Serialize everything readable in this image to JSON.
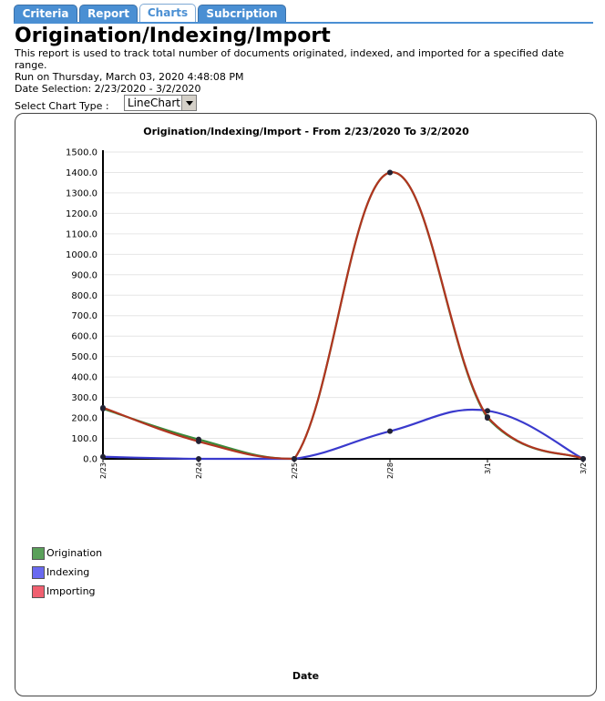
{
  "tabs": [
    {
      "label": "Criteria",
      "active": false
    },
    {
      "label": "Report",
      "active": false
    },
    {
      "label": "Charts",
      "active": true
    },
    {
      "label": "Subcription",
      "active": false
    }
  ],
  "header": {
    "title": "Origination/Indexing/Import",
    "description": "This report is used to track total number of documents originated, indexed, and imported for a specified date range.",
    "run_on": "Run on Thursday, March 03, 2020 4:48:08 PM",
    "date_selection": "Date Selection: 2/23/2020 - 3/2/2020"
  },
  "chart_type": {
    "label": "Select Chart Type :",
    "selected": "LineChart"
  },
  "colors": {
    "tab_bg": "#4a8fd3",
    "origination": "#3a8a3a",
    "indexing": "#3a3acd",
    "importing": "#b03520"
  },
  "chart_data": {
    "type": "line",
    "title": "Origination/Indexing/Import - From 2/23/2020 To 3/2/2020",
    "xlabel": "Date",
    "ylabel": "",
    "categories": [
      "2/23",
      "2/24",
      "2/25",
      "2/28",
      "3/1",
      "3/2"
    ],
    "ylim": [
      0,
      1500
    ],
    "yticks": [
      0,
      100,
      200,
      300,
      400,
      500,
      600,
      700,
      800,
      900,
      1000,
      1100,
      1200,
      1300,
      1400,
      1500
    ],
    "grid": true,
    "legend_position": "bottom-left",
    "series": [
      {
        "name": "Origination",
        "color": "#5aa05a",
        "line_color": "#3a8a3a",
        "values": [
          245,
          95,
          0,
          1400,
          200,
          0
        ]
      },
      {
        "name": "Indexing",
        "color": "#6a6af0",
        "line_color": "#3a3acd",
        "values": [
          10,
          0,
          0,
          135,
          235,
          0
        ]
      },
      {
        "name": "Importing",
        "color": "#f06070",
        "line_color": "#b03520",
        "values": [
          250,
          85,
          0,
          1400,
          205,
          0
        ]
      }
    ]
  }
}
